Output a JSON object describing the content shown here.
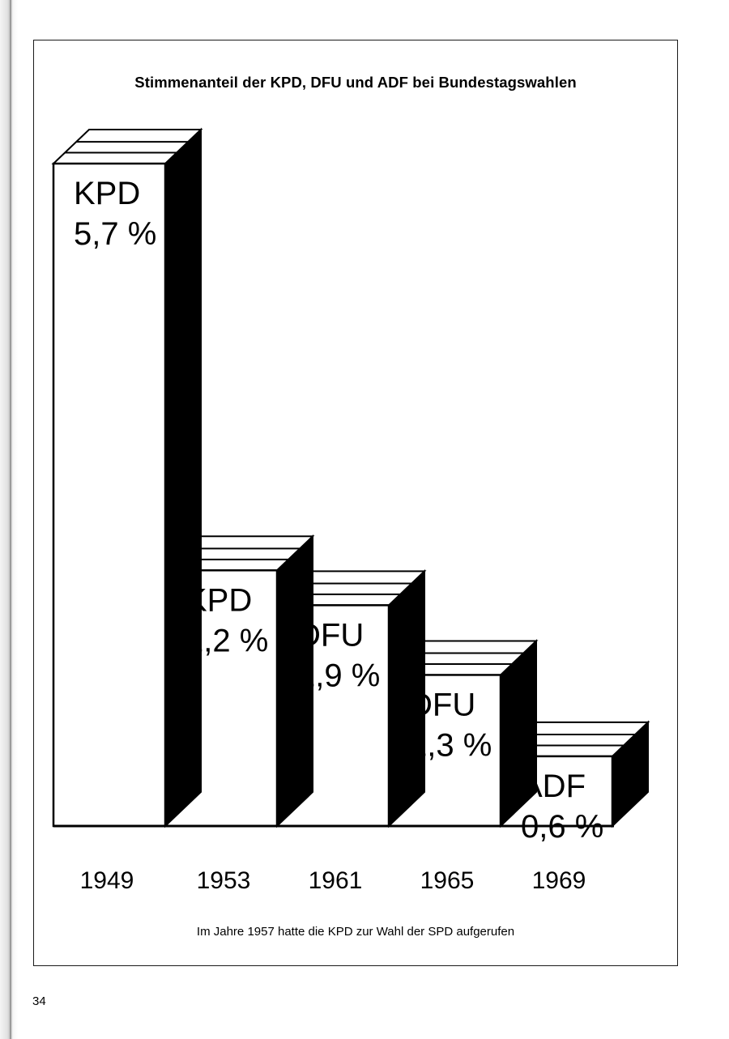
{
  "title": "Stimmenanteil der KPD, DFU und ADF bei Bundestagswahlen",
  "caption": "Im Jahre 1957 hatte die KPD zur Wahl der SPD aufgerufen",
  "page_number": "34",
  "chart_data": {
    "type": "bar",
    "title": "Stimmenanteil der KPD, DFU und ADF bei Bundestagswahlen",
    "xlabel": "",
    "ylabel": "",
    "categories": [
      "1949",
      "1953",
      "1961",
      "1965",
      "1969"
    ],
    "values": [
      5.7,
      2.2,
      1.9,
      1.3,
      0.6
    ],
    "party_labels": [
      "KPD",
      "KPD",
      "DFU",
      "DFU",
      "ADF"
    ],
    "value_labels": [
      "5,7 %",
      "2,2 %",
      "1,9 %",
      "1,3 %",
      "0,6 %"
    ],
    "ylim": [
      0,
      5.7
    ],
    "grid": false,
    "legend": "none",
    "style": "3d-bar",
    "colors": {
      "bar_face": "#ffffff",
      "bar_side": "#000000",
      "outline": "#000000"
    }
  }
}
